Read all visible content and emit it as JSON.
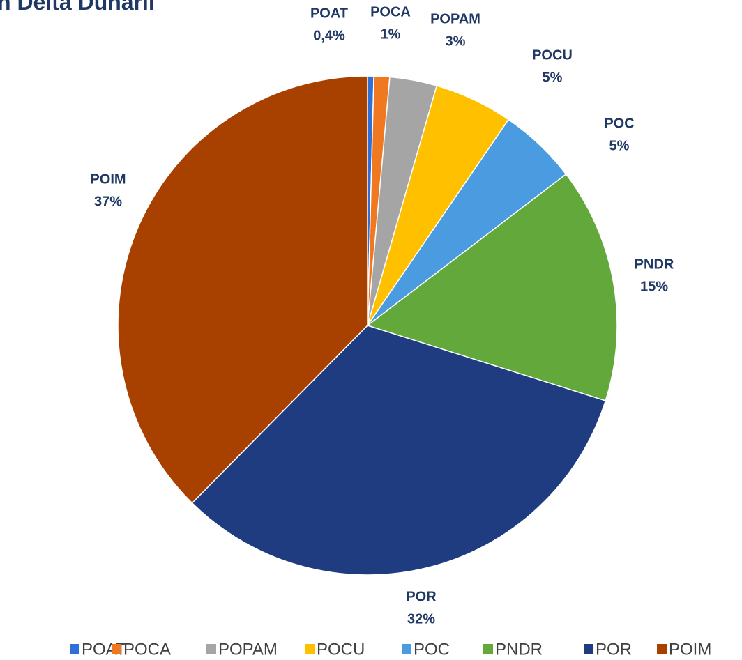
{
  "chart_data": {
    "type": "pie",
    "title": "n Delta Dunarii",
    "categories": [
      "POAT",
      "POCA",
      "POPAM",
      "POCU",
      "POC",
      "PNDR",
      "POR",
      "POIM"
    ],
    "values": [
      0.4,
      1,
      3,
      5,
      5,
      15,
      32,
      37
    ],
    "value_labels": [
      "0,4%",
      "1%",
      "3%",
      "5%",
      "5%",
      "15%",
      "32%",
      "37%"
    ],
    "colors": [
      "#2e6fd8",
      "#f07820",
      "#a5a5a5",
      "#ffc000",
      "#4a9be0",
      "#62a83a",
      "#1f3c80",
      "#a84000"
    ],
    "legend": "bottom"
  }
}
